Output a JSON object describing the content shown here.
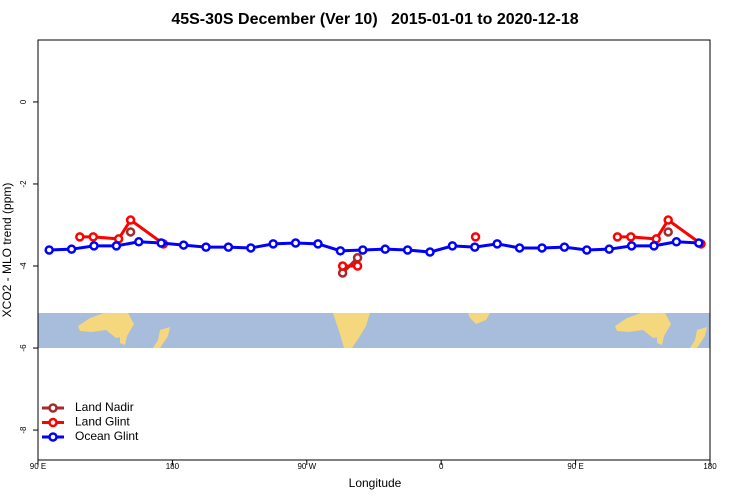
{
  "chart_data": {
    "type": "line",
    "title": "45S-30S December (Ver 10)   2015-01-01 to 2020-12-18",
    "x_label": "Longitude",
    "y_label": "XCO2 - MLO trend (ppm)",
    "xlim": [
      90,
      540
    ],
    "ylim": [
      -8.73,
      1.51
    ],
    "xticks": [
      {
        "value": 90,
        "label": "90 E"
      },
      180,
      {
        "value": 270,
        "label": "90 W"
      },
      {
        "value": 360,
        "label": "0"
      },
      {
        "value": 450,
        "label": "90 E"
      },
      {
        "value": 540,
        "label": "180"
      }
    ],
    "yticks": [
      0,
      -2,
      -4,
      -6,
      -8
    ],
    "legend": "bottom-left",
    "series": [
      {
        "name": "Land Nadir",
        "color": "#a52a2a",
        "x": [
          152,
          null,
          294,
          304,
          null,
          512
        ],
        "values": [
          -3.17,
          null,
          -4.17,
          -3.8,
          null,
          -3.17
        ]
      },
      {
        "name": "Land Glint",
        "color": "#ff0000",
        "x": [
          118,
          127,
          144,
          152,
          174,
          null,
          294,
          304,
          null,
          383,
          null,
          478,
          487,
          504,
          512,
          534
        ],
        "values": [
          -3.29,
          -3.29,
          -3.34,
          -2.88,
          -3.46,
          null,
          -4.0,
          -4.0,
          null,
          -3.29,
          null,
          -3.29,
          -3.29,
          -3.34,
          -2.88,
          -3.46
        ]
      },
      {
        "name": "Ocean Glint",
        "color": "#0000ff",
        "x": [
          97.5,
          112.5,
          127.5,
          142.5,
          157.5,
          172.5,
          187.5,
          202.5,
          217.5,
          232.5,
          247.5,
          262.5,
          277.5,
          292.5,
          307.5,
          322.5,
          337.5,
          352.5,
          367.5,
          382.5,
          397.5,
          412.5,
          427.5,
          442.5,
          457.5,
          472.5,
          487.5,
          502.5,
          517.5,
          532.5
        ],
        "values": [
          -3.61,
          -3.59,
          -3.51,
          -3.51,
          -3.41,
          -3.44,
          -3.49,
          -3.54,
          -3.54,
          -3.56,
          -3.46,
          -3.44,
          -3.46,
          -3.63,
          -3.61,
          -3.59,
          -3.61,
          -3.66,
          -3.51,
          -3.54,
          -3.46,
          -3.56,
          -3.56,
          -3.54,
          -3.61,
          -3.59,
          -3.51,
          -3.51,
          -3.41,
          -3.44
        ]
      }
    ]
  }
}
